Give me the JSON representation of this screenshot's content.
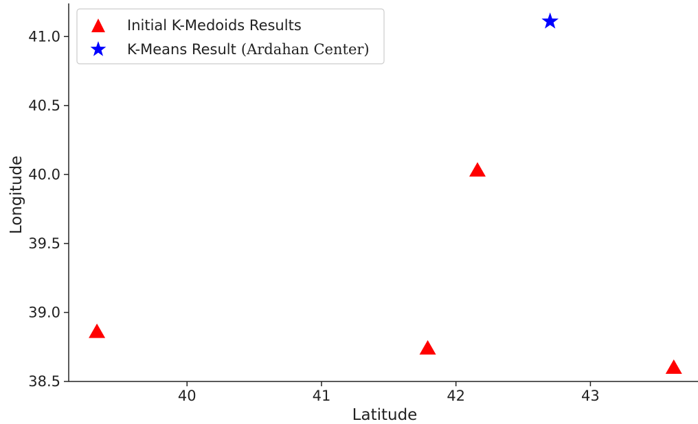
{
  "chart_data": {
    "type": "scatter",
    "xlabel": "Latitude",
    "ylabel": "Longitude",
    "xlim": [
      39.12,
      43.8
    ],
    "ylim": [
      38.5,
      41.24
    ],
    "x_ticks": [
      40,
      41,
      42,
      43
    ],
    "y_ticks": [
      38.5,
      39.0,
      39.5,
      40.0,
      40.5,
      41.0
    ],
    "x_tick_labels": [
      "40",
      "41",
      "42",
      "43"
    ],
    "y_tick_labels": [
      "38.5",
      "39.0",
      "39.5",
      "40.0",
      "40.5",
      "41.0"
    ],
    "legend_position": "top-left",
    "series": [
      {
        "name": "Initial K-Medoids Results",
        "marker": "triangle",
        "color": "#ff0000",
        "points": [
          {
            "x": 39.33,
            "y": 38.86
          },
          {
            "x": 41.79,
            "y": 38.74
          },
          {
            "x": 42.16,
            "y": 40.03
          },
          {
            "x": 43.62,
            "y": 38.6
          }
        ]
      },
      {
        "name": "K-Means Result",
        "name_suffix": "(Ardahan Center)",
        "marker": "star",
        "color": "#0000ff",
        "points": [
          {
            "x": 42.7,
            "y": 41.11
          }
        ]
      }
    ]
  }
}
